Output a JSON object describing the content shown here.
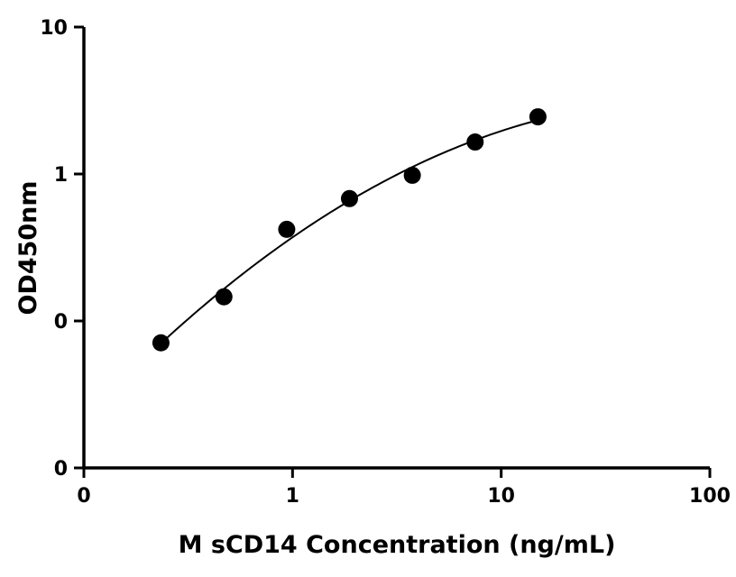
{
  "chart_data": {
    "type": "scatter",
    "title": "",
    "xlabel": "M sCD14 Concentration (ng/mL)",
    "ylabel": "OD450nm",
    "x_scale": "log",
    "y_scale": "log",
    "xlim": [
      0.1,
      100
    ],
    "ylim": [
      0.01,
      10
    ],
    "x_ticks": [
      {
        "value": 0.1,
        "label": "0"
      },
      {
        "value": 1,
        "label": "1"
      },
      {
        "value": 10,
        "label": "10"
      },
      {
        "value": 100,
        "label": "100"
      }
    ],
    "y_ticks": [
      {
        "value": 0.01,
        "label": "0"
      },
      {
        "value": 0.1,
        "label": "0"
      },
      {
        "value": 1,
        "label": "1"
      },
      {
        "value": 10,
        "label": "10"
      }
    ],
    "grid": false,
    "legend": "none",
    "series": [
      {
        "x": [
          0.234,
          0.469,
          0.938,
          1.875,
          3.75,
          7.5,
          15
        ],
        "y": [
          0.071,
          0.146,
          0.42,
          0.68,
          0.98,
          1.65,
          2.45
        ]
      }
    ],
    "fit_curve": true
  }
}
